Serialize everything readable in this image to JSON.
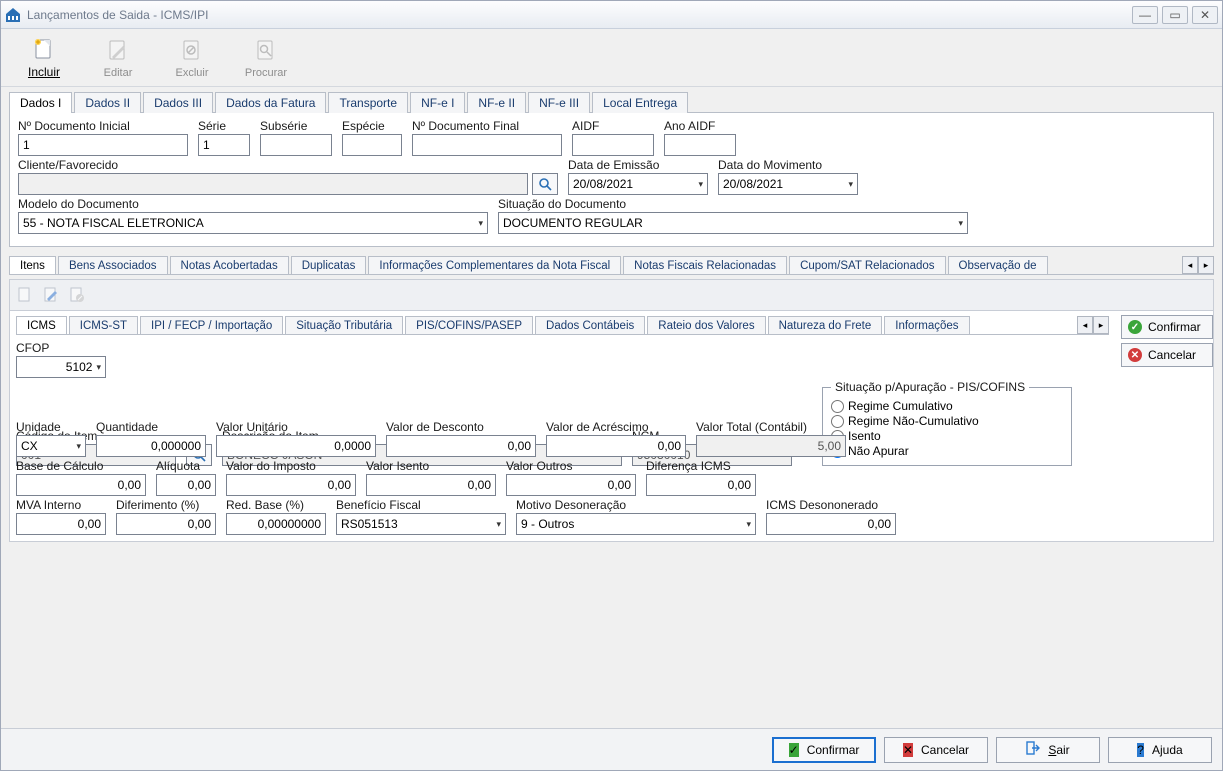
{
  "colors": {
    "titlebar_text": "#6e7a8c",
    "accent": "#1b6fd0",
    "ok": "#3aa53a",
    "cancel": "#d23c3c",
    "help": "#2a7ad1",
    "border": "#9aa2b0",
    "panel_bg": "#ffffff",
    "shell_bg": "#f0f0f0"
  },
  "window": {
    "title": "Lançamentos de Saida - ICMS/IPI",
    "buttons": {
      "minimize": "—",
      "maximize": "▭",
      "close": "✕"
    }
  },
  "toolbar": {
    "incluir": "Incluir",
    "editar": "Editar",
    "excluir": "Excluir",
    "procurar": "Procurar"
  },
  "tabs_main": [
    "Dados I",
    "Dados II",
    "Dados III",
    "Dados da Fatura",
    "Transporte",
    "NF-e I",
    "NF-e II",
    "NF-e III",
    "Local Entrega"
  ],
  "tabs_main_active": 0,
  "dados1": {
    "labels": {
      "n_doc_ini": "Nº Documento Inicial",
      "serie": "Série",
      "subserie": "Subsérie",
      "especie": "Espécie",
      "n_doc_fin": "Nº Documento Final",
      "aidf": "AIDF",
      "ano_aidf": "Ano AIDF",
      "cliente": "Cliente/Favorecido",
      "data_emissao": "Data de Emissão",
      "data_movimento": "Data do Movimento",
      "modelo": "Modelo do Documento",
      "situacao": "Situação do Documento"
    },
    "values": {
      "n_doc_ini": "1",
      "serie": "1",
      "subserie": "",
      "especie": "",
      "n_doc_fin": "",
      "aidf": "",
      "ano_aidf": "",
      "cliente": "",
      "data_emissao": "20/08/2021",
      "data_movimento": "20/08/2021",
      "modelo": "55 - NOTA FISCAL ELETRONICA",
      "situacao": "DOCUMENTO REGULAR"
    }
  },
  "tabs_mid": [
    "Itens",
    "Bens Associados",
    "Notas Acobertadas",
    "Duplicatas",
    "Informações Complementares da Nota Fiscal",
    "Notas Fiscais Relacionadas",
    "Cupom/SAT Relacionados",
    "Observação de"
  ],
  "tabs_mid_active": 0,
  "tabs_inner": [
    "ICMS",
    "ICMS-ST",
    "IPI / FECP / Importação",
    "Situação Tributária",
    "PIS/COFINS/PASEP",
    "Dados Contábeis",
    "Rateio dos Valores",
    "Natureza do Frete",
    "Informações"
  ],
  "tabs_inner_active": 0,
  "inner_actions": {
    "confirmar": "Confirmar",
    "cancelar": "Cancelar"
  },
  "icms": {
    "labels": {
      "cfop": "CFOP",
      "codigo_item": "Código do Item",
      "descricao": "Descrição do Item",
      "ncm": "NCM",
      "unidade": "Unidade",
      "quantidade": "Quantidade",
      "valor_unitario": "Valor Unitário",
      "valor_desconto": "Valor de Desconto",
      "valor_acrescimo": "Valor de Acréscimo",
      "valor_total": "Valor Total (Contábil)",
      "base_calculo": "Base de Cálculo",
      "aliquota": "Alíquota",
      "valor_imposto": "Valor do Imposto",
      "valor_isento": "Valor Isento",
      "valor_outros": "Valor Outros",
      "diferenca_icms": "Diferença ICMS",
      "mva_interno": "MVA Interno",
      "diferimento": "Diferimento (%)",
      "red_base": "Red. Base (%)",
      "beneficio_fiscal": "Benefício Fiscal",
      "motivo_desoneracao": "Motivo Desoneração",
      "icms_desononerado": "ICMS Desononerado"
    },
    "values": {
      "cfop": "5102",
      "codigo_item": "001",
      "descricao": "BONECO JASON",
      "ncm": "95030010",
      "unidade": "CX",
      "quantidade": "0,000000",
      "valor_unitario": "0,0000",
      "valor_desconto": "0,00",
      "valor_acrescimo": "0,00",
      "valor_total": "5,00",
      "base_calculo": "0,00",
      "aliquota": "0,00",
      "valor_imposto": "0,00",
      "valor_isento": "0,00",
      "valor_outros": "0,00",
      "diferenca_icms": "0,00",
      "mva_interno": "0,00",
      "diferimento": "0,00",
      "red_base": "0,00000000",
      "beneficio_fiscal": "RS051513",
      "motivo_desoneracao": "9 - Outros",
      "icms_desononerado": "0,00"
    },
    "situacao_apuracao": {
      "legend": "Situação p/Apuração - PIS/COFINS",
      "options": [
        "Regime Cumulativo",
        "Regime Não-Cumulativo",
        "Isento",
        "Não Apurar"
      ],
      "selected": 3
    }
  },
  "footer": {
    "confirmar": "Confirmar",
    "cancelar": "Cancelar",
    "sair": "Sair",
    "ajuda": "Ajuda"
  }
}
